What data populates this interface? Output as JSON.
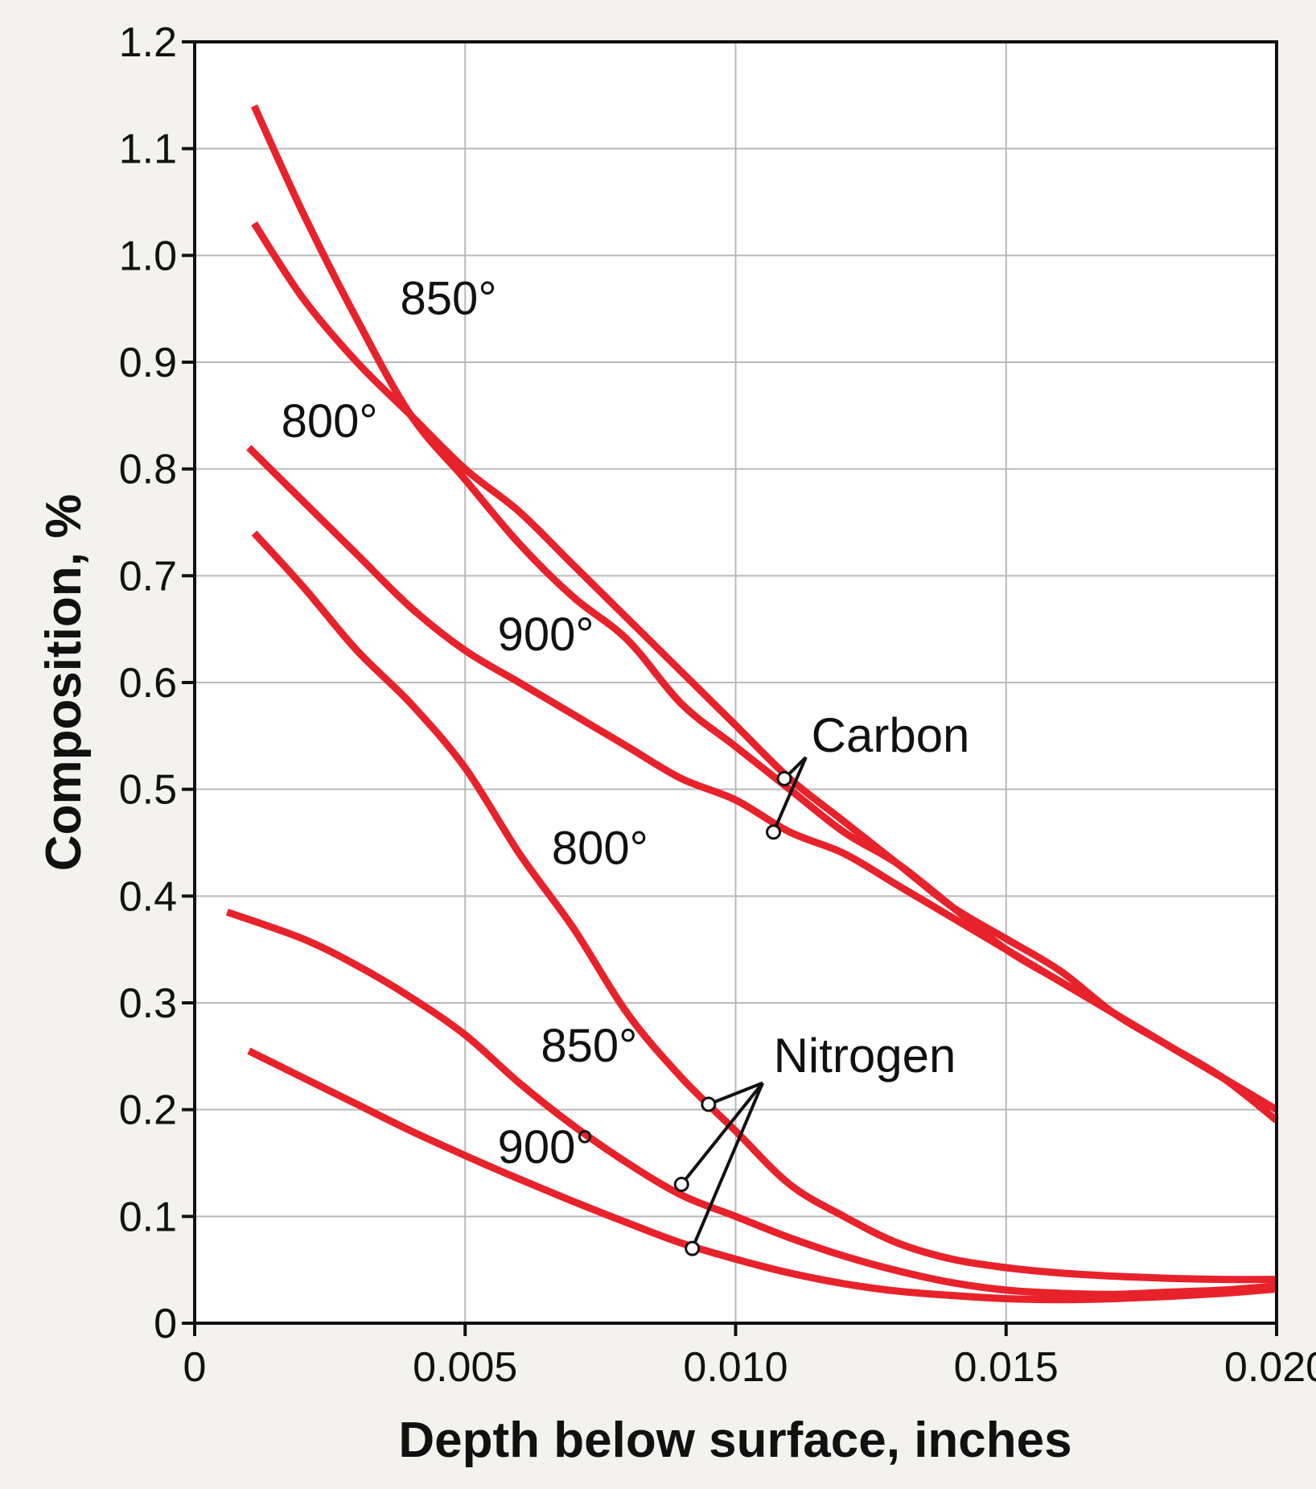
{
  "chart_data": {
    "type": "line",
    "xlabel": "Depth below surface, inches",
    "ylabel": "Composition, %",
    "xlim": [
      0,
      0.02
    ],
    "ylim": [
      0,
      1.2
    ],
    "x_ticks": [
      "0",
      "0.005",
      "0.010",
      "0.015",
      "0.020"
    ],
    "x_tick_values": [
      0,
      0.005,
      0.01,
      0.015,
      0.02
    ],
    "y_ticks": [
      "0",
      "0.1",
      "0.2",
      "0.3",
      "0.4",
      "0.5",
      "0.6",
      "0.7",
      "0.8",
      "0.9",
      "1.0",
      "1.1",
      "1.2"
    ],
    "y_tick_values": [
      0,
      0.1,
      0.2,
      0.3,
      0.4,
      0.5,
      0.6,
      0.7,
      0.8,
      0.9,
      1.0,
      1.1,
      1.2
    ],
    "grid": true,
    "colors": {
      "curve": "#e8222b",
      "background": "#f3f2ee",
      "plot_background": "#ffffff"
    },
    "series": [
      {
        "name": "850°",
        "group": "Carbon",
        "x": [
          0.0011,
          0.002,
          0.003,
          0.004,
          0.005,
          0.006,
          0.007,
          0.008,
          0.009,
          0.01,
          0.011,
          0.012,
          0.013,
          0.014,
          0.015,
          0.016,
          0.017,
          0.018,
          0.019,
          0.02
        ],
        "y": [
          1.14,
          1.04,
          0.94,
          0.85,
          0.79,
          0.73,
          0.68,
          0.64,
          0.58,
          0.54,
          0.5,
          0.46,
          0.43,
          0.39,
          0.35,
          0.32,
          0.29,
          0.26,
          0.23,
          0.2
        ]
      },
      {
        "name": "800°",
        "group": "Carbon",
        "x": [
          0.0011,
          0.002,
          0.003,
          0.004,
          0.005,
          0.006,
          0.007,
          0.008,
          0.009,
          0.01,
          0.011,
          0.012,
          0.013,
          0.014,
          0.015,
          0.016,
          0.017,
          0.018,
          0.019
        ],
        "y": [
          1.03,
          0.96,
          0.9,
          0.85,
          0.8,
          0.76,
          0.71,
          0.66,
          0.61,
          0.56,
          0.51,
          0.47,
          0.43,
          0.39,
          0.36,
          0.33,
          0.29,
          0.26,
          0.23
        ]
      },
      {
        "name": "900°",
        "group": "Carbon",
        "x": [
          0.001,
          0.002,
          0.003,
          0.004,
          0.005,
          0.006,
          0.007,
          0.008,
          0.009,
          0.01,
          0.011,
          0.012,
          0.013,
          0.014,
          0.015,
          0.016,
          0.017,
          0.018,
          0.019,
          0.02
        ],
        "y": [
          0.82,
          0.77,
          0.72,
          0.67,
          0.63,
          0.6,
          0.57,
          0.54,
          0.51,
          0.49,
          0.46,
          0.44,
          0.41,
          0.38,
          0.35,
          0.32,
          0.29,
          0.26,
          0.23,
          0.19
        ]
      },
      {
        "name": "800°",
        "group": "Nitrogen",
        "x": [
          0.0011,
          0.002,
          0.003,
          0.004,
          0.005,
          0.006,
          0.007,
          0.008,
          0.009,
          0.01,
          0.011,
          0.012,
          0.013,
          0.014,
          0.015,
          0.016,
          0.017,
          0.018,
          0.019,
          0.02
        ],
        "y": [
          0.74,
          0.69,
          0.63,
          0.58,
          0.52,
          0.44,
          0.37,
          0.29,
          0.23,
          0.18,
          0.13,
          0.1,
          0.075,
          0.06,
          0.052,
          0.047,
          0.044,
          0.042,
          0.041,
          0.041
        ]
      },
      {
        "name": "850°",
        "group": "Nitrogen",
        "x": [
          0.0006,
          0.002,
          0.003,
          0.004,
          0.005,
          0.006,
          0.007,
          0.008,
          0.009,
          0.01,
          0.011,
          0.012,
          0.013,
          0.014,
          0.015,
          0.016,
          0.017,
          0.018,
          0.019,
          0.02
        ],
        "y": [
          0.385,
          0.36,
          0.335,
          0.305,
          0.27,
          0.225,
          0.185,
          0.15,
          0.12,
          0.1,
          0.08,
          0.063,
          0.049,
          0.038,
          0.031,
          0.028,
          0.027,
          0.029,
          0.031,
          0.035
        ]
      },
      {
        "name": "900°",
        "group": "Nitrogen",
        "x": [
          0.001,
          0.002,
          0.003,
          0.004,
          0.005,
          0.006,
          0.007,
          0.008,
          0.009,
          0.01,
          0.011,
          0.012,
          0.013,
          0.014,
          0.015,
          0.016,
          0.017,
          0.018,
          0.019,
          0.02
        ],
        "y": [
          0.255,
          0.23,
          0.205,
          0.18,
          0.157,
          0.135,
          0.114,
          0.094,
          0.075,
          0.06,
          0.047,
          0.037,
          0.03,
          0.026,
          0.023,
          0.022,
          0.023,
          0.025,
          0.028,
          0.032
        ]
      }
    ],
    "annotations": {
      "series_labels": [
        {
          "text": "850°",
          "x": 0.0038,
          "y": 0.945
        },
        {
          "text": "800°",
          "x": 0.0016,
          "y": 0.83
        },
        {
          "text": "900°",
          "x": 0.0056,
          "y": 0.63
        },
        {
          "text": "800°",
          "x": 0.0066,
          "y": 0.43
        },
        {
          "text": "850°",
          "x": 0.0064,
          "y": 0.245
        },
        {
          "text": "900°",
          "x": 0.0056,
          "y": 0.15
        }
      ],
      "groups": [
        {
          "text": "Carbon",
          "x": 0.0114,
          "y": 0.535,
          "label_anchor": {
            "x": 0.0113,
            "y": 0.53
          },
          "markers": [
            {
              "x": 0.0109,
              "y": 0.51
            },
            {
              "x": 0.0107,
              "y": 0.46
            }
          ]
        },
        {
          "text": "Nitrogen",
          "x": 0.0107,
          "y": 0.235,
          "label_anchor": {
            "x": 0.0105,
            "y": 0.225
          },
          "markers": [
            {
              "x": 0.0095,
              "y": 0.205
            },
            {
              "x": 0.009,
              "y": 0.13
            },
            {
              "x": 0.0092,
              "y": 0.07
            }
          ]
        }
      ]
    }
  }
}
